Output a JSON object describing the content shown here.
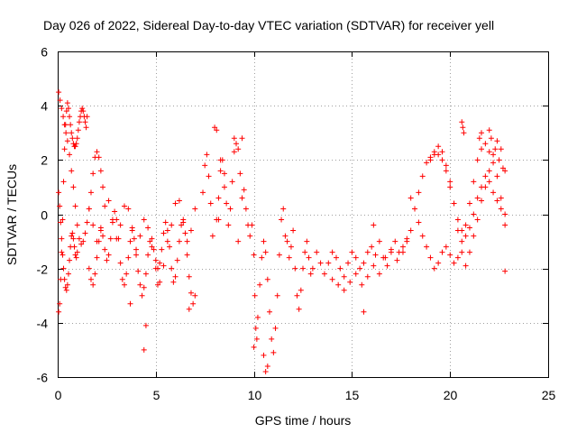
{
  "chart_data": {
    "type": "scatter",
    "title": "Day 026 of 2022, Sidereal Day-to-day VTEC variation (SDTVAR) for receiver yell",
    "xlabel": "GPS time / hours",
    "ylabel": "SDTVAR / TECUs",
    "xlim": [
      0,
      25
    ],
    "ylim": [
      -6,
      6
    ],
    "xticks": [
      0,
      5,
      10,
      15,
      20,
      25
    ],
    "yticks": [
      -6,
      -4,
      -2,
      0,
      2,
      4,
      6
    ],
    "xtick_labels": [
      "0",
      "5",
      "10",
      "15",
      "20",
      "25"
    ],
    "ytick_labels": [
      "-6",
      "-4",
      "-2",
      "0",
      "2",
      "4",
      "6"
    ],
    "grid": true,
    "marker": "plus",
    "color": "#ff0000",
    "series": [
      {
        "name": "SDTVAR",
        "x": [
          0.05,
          0.1,
          0.15,
          0.2,
          0.25,
          0.3,
          0.35,
          0.4,
          0.45,
          0.5,
          0.55,
          0.6,
          0.65,
          0.7,
          0.75,
          0.8,
          0.85,
          0.9,
          0.95,
          1.0,
          1.05,
          1.1,
          1.15,
          1.2,
          1.25,
          1.3,
          1.35,
          1.4,
          1.45,
          1.5,
          0.05,
          0.12,
          0.2,
          0.28,
          0.35,
          0.42,
          0.5,
          0.6,
          0.7,
          0.8,
          0.9,
          1.0,
          1.1,
          1.2,
          1.3,
          1.4,
          1.5,
          1.6,
          1.7,
          1.8,
          1.9,
          2.0,
          2.1,
          2.2,
          2.3,
          0.05,
          0.1,
          0.15,
          0.2,
          0.25,
          0.3,
          0.35,
          0.4,
          0.45,
          0.5,
          0.55,
          0.6,
          0.65,
          0.7,
          0.75,
          0.8,
          0.85,
          0.9,
          0.95,
          1.0,
          1.6,
          1.7,
          1.8,
          1.9,
          2.0,
          2.1,
          2.2,
          2.3,
          2.4,
          2.5,
          2.6,
          2.7,
          2.8,
          2.9,
          3.0,
          3.1,
          3.2,
          3.3,
          3.4,
          3.5,
          3.6,
          3.7,
          3.8,
          3.9,
          4.0,
          4.1,
          4.2,
          4.3,
          4.4,
          4.5,
          4.6,
          4.7,
          4.8,
          4.9,
          5.0,
          5.1,
          5.2,
          5.3,
          5.4,
          5.5,
          5.6,
          5.7,
          5.8,
          5.9,
          6.0,
          6.1,
          6.2,
          6.3,
          6.4,
          6.5,
          6.6,
          6.7,
          6.8,
          6.9,
          7.0,
          1.6,
          1.8,
          2.0,
          2.2,
          2.4,
          2.6,
          2.8,
          3.0,
          3.2,
          3.4,
          3.6,
          3.8,
          4.0,
          4.2,
          4.4,
          4.6,
          4.8,
          5.0,
          5.2,
          5.4,
          5.6,
          5.8,
          6.0,
          6.2,
          6.4,
          6.6,
          6.8,
          7.0,
          4.4,
          4.5,
          3.7,
          5.1,
          6.7,
          7.4,
          7.5,
          7.6,
          7.7,
          7.8,
          7.9,
          8.0,
          8.1,
          8.2,
          8.3,
          8.4,
          8.5,
          8.6,
          8.7,
          8.8,
          8.9,
          9.0,
          9.1,
          9.2,
          9.3,
          9.4,
          9.5,
          9.6,
          9.7,
          9.8,
          8.1,
          8.2,
          8.3,
          8.5,
          9.0,
          9.2,
          9.4,
          9.9,
          10.0,
          10.05,
          10.1,
          10.15,
          10.2,
          10.3,
          10.4,
          10.5,
          10.6,
          10.7,
          10.8,
          10.9,
          11.0,
          11.1,
          11.2,
          11.3,
          11.4,
          11.5,
          11.6,
          10.0,
          10.5,
          10.6,
          10.7,
          11.7,
          11.8,
          11.9,
          12.0,
          12.1,
          12.2,
          12.3,
          12.4,
          12.5,
          12.6,
          12.7,
          12.8,
          12.9,
          13.0,
          13.2,
          13.4,
          13.6,
          13.8,
          14.0,
          14.2,
          14.4,
          14.6,
          14.8,
          15.0,
          15.2,
          15.4,
          15.6,
          15.8,
          16.0,
          16.2,
          16.4,
          16.6,
          16.8,
          17.0,
          17.2,
          17.4,
          17.6,
          17.8,
          14.0,
          14.3,
          14.6,
          14.9,
          15.2,
          15.5,
          15.8,
          16.1,
          16.4,
          16.7,
          17.0,
          17.3,
          15.6,
          16.1,
          17.6,
          17.8,
          18.0,
          18.2,
          18.4,
          18.6,
          18.8,
          19.0,
          19.2,
          19.4,
          19.6,
          19.8,
          20.0,
          20.2,
          20.4,
          20.6,
          20.8,
          21.0,
          21.2,
          21.4,
          21.6,
          21.8,
          22.0,
          22.2,
          22.4,
          22.6,
          22.8,
          18.0,
          18.2,
          18.4,
          18.6,
          18.8,
          19.0,
          19.2,
          19.4,
          19.6,
          19.8,
          20.0,
          20.2,
          20.4,
          20.6,
          20.8,
          21.0,
          21.2,
          21.4,
          21.6,
          21.8,
          22.0,
          22.2,
          22.4,
          22.6,
          22.8,
          19.0,
          19.2,
          19.4,
          19.6,
          19.8,
          20.0,
          20.2,
          20.4,
          20.6,
          20.8,
          21.0,
          21.2,
          21.4,
          21.6,
          21.8,
          22.0,
          22.2,
          22.4,
          22.6,
          22.8,
          20.6,
          20.65,
          20.7,
          21.5,
          21.6,
          22.0,
          22.1,
          22.3,
          22.5,
          22.7,
          22.8
        ],
        "y": [
          -3.6,
          -3.3,
          -2.4,
          -1.4,
          -0.2,
          1.2,
          2.4,
          3.3,
          3.8,
          4.1,
          3.9,
          3.6,
          3.3,
          3.0,
          2.8,
          2.6,
          2.5,
          2.5,
          2.6,
          2.8,
          3.1,
          3.4,
          3.6,
          3.8,
          3.9,
          3.8,
          3.6,
          3.4,
          3.2,
          3.6,
          4.5,
          4.2,
          3.9,
          3.6,
          3.3,
          3.0,
          2.7,
          2.2,
          1.6,
          1.0,
          0.3,
          -0.4,
          -0.9,
          -1.1,
          -1.0,
          -0.7,
          -0.3,
          0.2,
          0.8,
          1.5,
          2.1,
          2.3,
          2.1,
          1.6,
          1.0,
          0.8,
          0.3,
          -0.3,
          -0.9,
          -1.5,
          -2.0,
          -2.4,
          -2.7,
          -2.8,
          -2.6,
          -2.2,
          -1.7,
          -1.2,
          -0.8,
          -0.7,
          -0.9,
          -1.2,
          -1.5,
          -1.6,
          -1.4,
          -2.0,
          -2.4,
          -2.6,
          -2.2,
          -1.6,
          -1.0,
          -0.6,
          -0.8,
          -1.3,
          -1.7,
          -1.5,
          -0.9,
          -0.3,
          0.1,
          -0.2,
          -0.9,
          -1.8,
          -2.4,
          -2.6,
          -2.2,
          -1.6,
          -1.0,
          -0.6,
          -0.9,
          -1.5,
          -2.1,
          -2.6,
          -3.0,
          -2.7,
          -2.2,
          -1.5,
          -1.0,
          -0.9,
          -1.3,
          -1.7,
          -2.0,
          -1.8,
          -1.3,
          -0.7,
          -0.3,
          -0.6,
          -1.2,
          -2.0,
          -2.5,
          -2.3,
          -1.7,
          -1.0,
          -0.4,
          -0.2,
          -0.7,
          -1.5,
          -2.3,
          -2.9,
          -3.3,
          -3.0,
          0.2,
          -0.4,
          -1.0,
          -0.5,
          0.3,
          0.5,
          -0.2,
          -0.9,
          -0.4,
          0.3,
          0.2,
          -0.5,
          -1.3,
          -0.8,
          -0.2,
          -0.5,
          -1.2,
          -2.0,
          -2.5,
          -1.9,
          -1.0,
          -0.4,
          0.4,
          0.5,
          -0.3,
          -1.0,
          -0.6,
          0.2,
          -5.0,
          -4.1,
          -3.3,
          -2.6,
          -3.5,
          0.8,
          1.8,
          2.2,
          1.4,
          0.4,
          -0.8,
          3.2,
          -0.2,
          0.6,
          1.6,
          2.0,
          1.5,
          0.4,
          -0.4,
          0.2,
          1.2,
          2.3,
          2.6,
          2.4,
          1.5,
          0.6,
          0.9,
          0.2,
          -0.4,
          -0.8,
          3.1,
          -0.2,
          2.0,
          1.0,
          2.8,
          -1.0,
          2.8,
          -0.4,
          -1.5,
          -3.0,
          -4.2,
          -4.6,
          -3.8,
          -2.6,
          -1.6,
          -1.0,
          -1.4,
          -2.4,
          -3.6,
          -4.6,
          -5.1,
          -4.2,
          -3.0,
          -1.5,
          -0.2,
          0.2,
          -0.8,
          -4.9,
          -5.2,
          -5.8,
          -5.6,
          -1.0,
          -1.6,
          -1.2,
          -0.6,
          -2.0,
          -3.0,
          -3.5,
          -2.8,
          -2.0,
          -1.4,
          -1.0,
          -1.6,
          -2.2,
          -2.0,
          -1.4,
          -1.8,
          -2.2,
          -1.8,
          -1.4,
          -1.6,
          -2.0,
          -2.3,
          -1.8,
          -1.4,
          -1.6,
          -2.0,
          -1.8,
          -1.4,
          -1.2,
          -1.5,
          -1.0,
          -1.6,
          -1.9,
          -1.4,
          -1.0,
          -1.4,
          -1.2,
          -0.9,
          -2.4,
          -2.6,
          -2.8,
          -2.5,
          -2.2,
          -2.6,
          -2.3,
          -1.9,
          -2.2,
          -1.6,
          -1.3,
          -1.7,
          -3.6,
          -0.4,
          -1.4,
          -1.0,
          -0.6,
          0.2,
          0.8,
          1.4,
          1.9,
          2.1,
          2.3,
          2.2,
          2.0,
          1.6,
          1.0,
          0.4,
          -0.2,
          -0.6,
          -0.8,
          -0.5,
          0.0,
          0.6,
          1.0,
          1.4,
          1.2,
          0.8,
          0.5,
          0.2,
          0.0,
          0.6,
          0.2,
          -0.3,
          -0.8,
          -1.2,
          -1.6,
          -2.0,
          -1.8,
          -1.4,
          -1.2,
          -1.5,
          -1.8,
          -1.6,
          -1.0,
          -0.4,
          0.4,
          1.2,
          2.0,
          2.4,
          2.6,
          2.3,
          1.9,
          1.4,
          0.6,
          -0.4,
          2.0,
          2.2,
          2.5,
          2.3,
          1.8,
          1.2,
          0.4,
          -0.6,
          -1.4,
          -1.9,
          -1.4,
          -0.8,
          -0.2,
          0.5,
          1.0,
          1.6,
          2.2,
          2.7,
          2.4,
          1.6,
          3.4,
          3.2,
          3.0,
          2.8,
          3.0,
          3.1,
          2.8,
          2.4,
          2.0,
          1.7,
          -2.1
        ]
      }
    ]
  }
}
